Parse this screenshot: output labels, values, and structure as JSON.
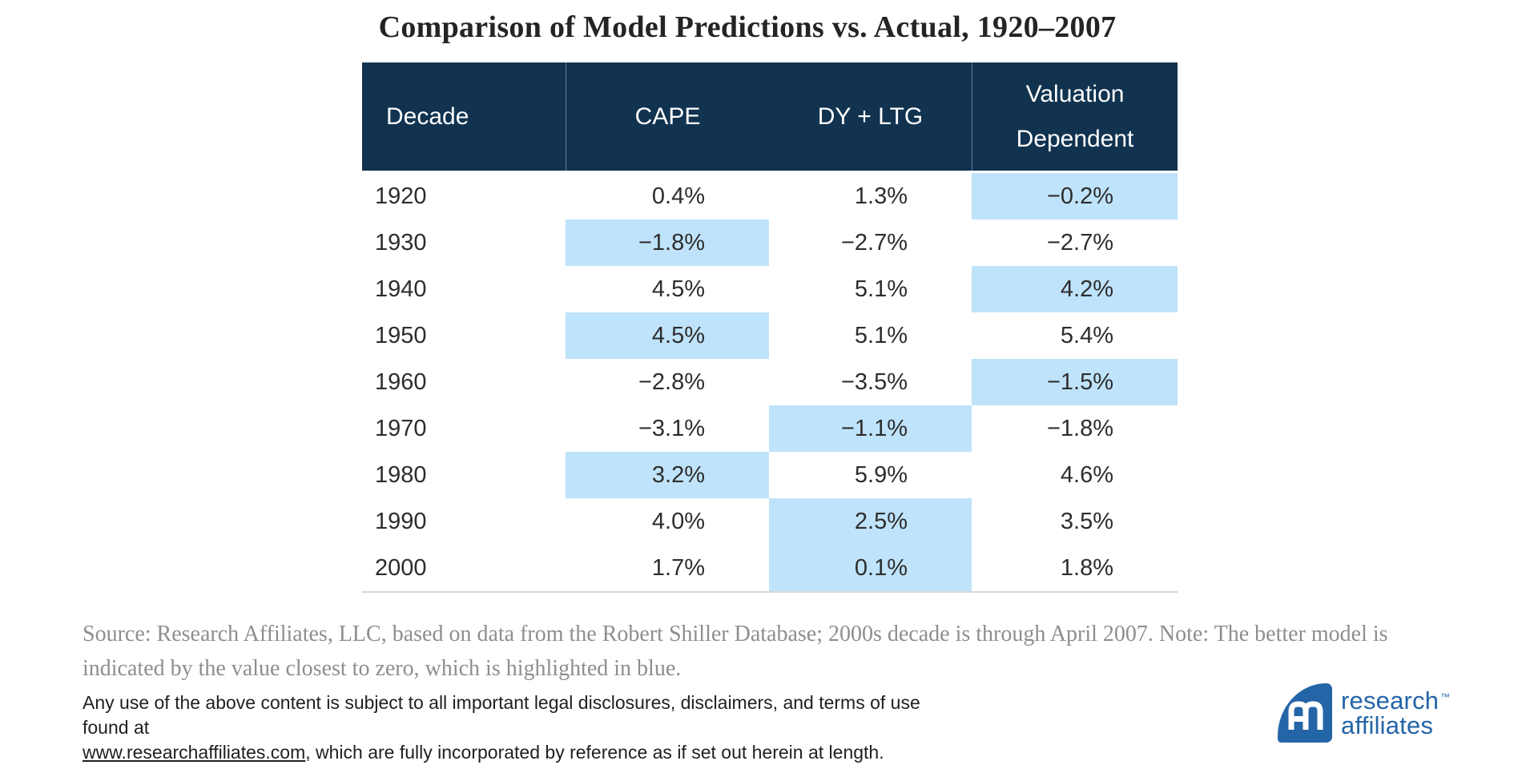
{
  "page": {
    "title": "Comparison of Model Predictions vs. Actual, 1920–2007"
  },
  "table": {
    "header": {
      "decade": "Decade",
      "cape": "CAPE",
      "dy_ltg": "DY + LTG",
      "valuation_line1": "Valuation",
      "valuation_line2": "Dependent"
    },
    "rows": [
      {
        "decade": "1920",
        "cape": "0.4%",
        "dy_ltg": "1.3%",
        "valuation": "−0.2%",
        "highlight": "valuation"
      },
      {
        "decade": "1930",
        "cape": "−1.8%",
        "dy_ltg": "−2.7%",
        "valuation": "−2.7%",
        "highlight": "cape"
      },
      {
        "decade": "1940",
        "cape": "4.5%",
        "dy_ltg": "5.1%",
        "valuation": "4.2%",
        "highlight": "valuation"
      },
      {
        "decade": "1950",
        "cape": "4.5%",
        "dy_ltg": "5.1%",
        "valuation": "5.4%",
        "highlight": "cape"
      },
      {
        "decade": "1960",
        "cape": "−2.8%",
        "dy_ltg": "−3.5%",
        "valuation": "−1.5%",
        "highlight": "valuation"
      },
      {
        "decade": "1970",
        "cape": "−3.1%",
        "dy_ltg": "−1.1%",
        "valuation": "−1.8%",
        "highlight": "dy_ltg"
      },
      {
        "decade": "1980",
        "cape": "3.2%",
        "dy_ltg": "5.9%",
        "valuation": "4.6%",
        "highlight": "cape"
      },
      {
        "decade": "1990",
        "cape": "4.0%",
        "dy_ltg": "2.5%",
        "valuation": "3.5%",
        "highlight": "dy_ltg"
      },
      {
        "decade": "2000",
        "cape": "1.7%",
        "dy_ltg": "0.1%",
        "valuation": "1.8%",
        "highlight": "dy_ltg"
      }
    ]
  },
  "chart_data": {
    "type": "table",
    "title": "Comparison of Model Predictions vs. Actual, 1920–2007",
    "columns": [
      "Decade",
      "CAPE",
      "DY + LTG",
      "Valuation Dependent"
    ],
    "units": "%",
    "rows": [
      [
        "1920",
        0.4,
        1.3,
        -0.2
      ],
      [
        "1930",
        -1.8,
        -2.7,
        -2.7
      ],
      [
        "1940",
        4.5,
        5.1,
        4.2
      ],
      [
        "1950",
        4.5,
        5.1,
        5.4
      ],
      [
        "1960",
        -2.8,
        -3.5,
        -1.5
      ],
      [
        "1970",
        -3.1,
        -1.1,
        -1.8
      ],
      [
        "1980",
        3.2,
        5.9,
        4.6
      ],
      [
        "1990",
        4.0,
        2.5,
        3.5
      ],
      [
        "2000",
        1.7,
        0.1,
        1.8
      ]
    ],
    "highlighted_cells": [
      [
        "1920",
        "Valuation Dependent"
      ],
      [
        "1930",
        "CAPE"
      ],
      [
        "1940",
        "Valuation Dependent"
      ],
      [
        "1950",
        "CAPE"
      ],
      [
        "1960",
        "Valuation Dependent"
      ],
      [
        "1970",
        "DY + LTG"
      ],
      [
        "1980",
        "CAPE"
      ],
      [
        "1990",
        "DY + LTG"
      ],
      [
        "2000",
        "DY + LTG"
      ]
    ],
    "note": "Highlighted blue cell per row = value closest to zero (better model)."
  },
  "footnotes": {
    "source_line1": "Source: Research Affiliates, LLC, based on data from the Robert Shiller Database; 2000s decade is through April 2007. Note: The better model is",
    "source_line2": "indicated by the value closest to zero, which is highlighted in blue.",
    "legal_line1": "Any use of the above content is subject to all important legal disclosures, disclaimers, and terms of use found at",
    "legal_link": "www.researchaffiliates.com",
    "legal_line2_rest": ", which are fully incorporated by reference as if set out herein at length."
  },
  "logo": {
    "name_line1": "research",
    "name_line2": "affiliates",
    "trademark": "™"
  },
  "colors": {
    "header_navy": "#113350",
    "highlight_blue": "#bfe3fa",
    "logo_blue": "#2465a8",
    "text_dark": "#2d2d2d",
    "source_gray": "#8e8e8e",
    "rule_gray": "#d8d8d8"
  }
}
